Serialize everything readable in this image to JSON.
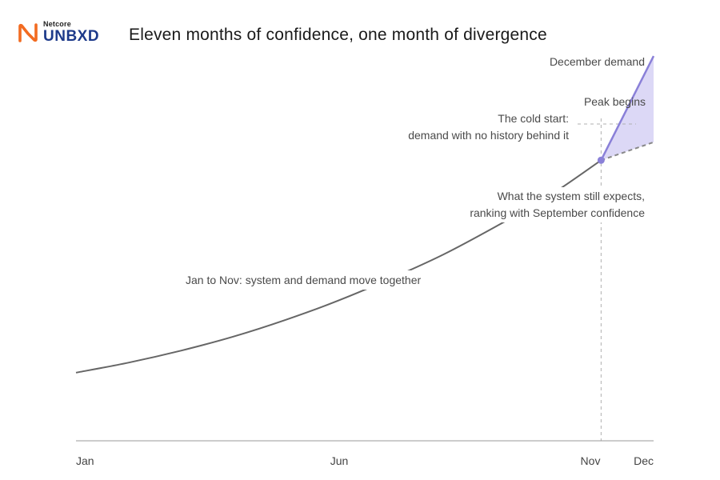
{
  "brand": {
    "small": "Netcore",
    "big": "UNBXD",
    "accent_color": "#f26b21",
    "text_color": "#1d3a8a"
  },
  "chart_data": {
    "type": "line",
    "title": "Eleven months of confidence, one month of divergence",
    "xlabel": "",
    "ylabel": "",
    "x_ticks": [
      "Jan",
      "Jun",
      "Nov",
      "Dec"
    ],
    "xlim": [
      0,
      11
    ],
    "ylim": [
      0,
      100
    ],
    "grid": false,
    "series": [
      {
        "key": "together",
        "color": "#666666",
        "style": "solid",
        "points": [
          [
            0,
            17
          ],
          [
            1,
            19.5
          ],
          [
            2,
            22.5
          ],
          [
            3,
            26
          ],
          [
            4,
            30.2
          ],
          [
            5,
            35
          ],
          [
            6,
            40.5
          ],
          [
            7,
            46.5
          ],
          [
            8,
            53.5
          ],
          [
            9,
            61
          ],
          [
            10,
            70
          ]
        ]
      },
      {
        "key": "demand",
        "color": "#8a80d8",
        "style": "solid",
        "points": [
          [
            10,
            70
          ],
          [
            11,
            96
          ]
        ]
      },
      {
        "key": "expected",
        "color": "#888888",
        "style": "dashed",
        "points": [
          [
            10,
            70
          ],
          [
            11,
            74.5
          ]
        ]
      }
    ],
    "divergence_fill": "#dcd8f6",
    "annotations": {
      "together": "Jan to Nov: system and demand move together",
      "expected_line1": "What the system still expects,",
      "expected_line2": "ranking with September confidence",
      "cold_start_line1": "The cold start:",
      "cold_start_line2": "demand with no history behind it",
      "peak": "Peak begins",
      "december": "December demand"
    }
  }
}
